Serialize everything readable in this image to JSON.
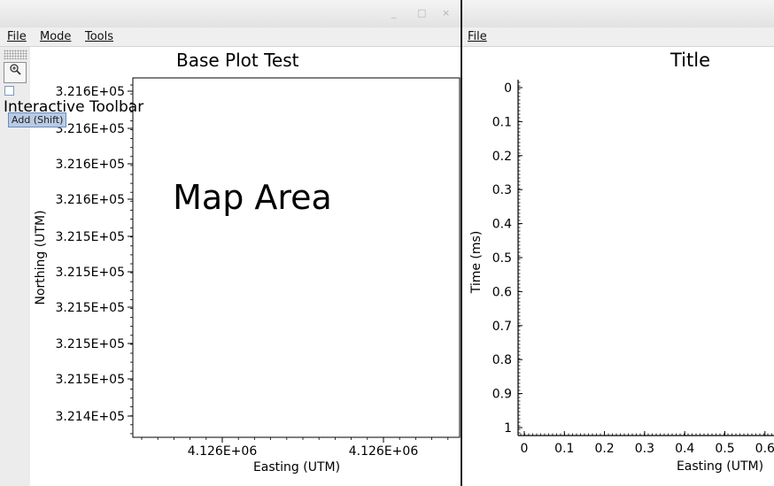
{
  "left_window": {
    "controls": {
      "minimize": "_",
      "maximize": "□",
      "close": "×"
    },
    "menu": [
      "File",
      "Mode",
      "Tools"
    ],
    "toolbar": {
      "zoom_icon": "zoom-in-icon",
      "title": "Interactive Toolbar",
      "tooltip": "Add (Shift)"
    },
    "plot": {
      "title": "Base Plot Test",
      "map_label": "Map Area",
      "xlabel": "Easting (UTM)",
      "ylabel": "Northing (UTM)",
      "x_ticks": [
        "4.126E+06",
        "4.126E+06"
      ],
      "y_ticks": [
        "3.216E+05",
        "3.216E+05",
        "3.216E+05",
        "3.216E+05",
        "3.215E+05",
        "3.215E+05",
        "3.215E+05",
        "3.215E+05",
        "3.215E+05",
        "3.214E+05"
      ]
    }
  },
  "right_window": {
    "menu": [
      "File"
    ],
    "plot": {
      "title": "Title",
      "xlabel": "Easting (UTM)",
      "ylabel": "Time (ms)",
      "x_ticks": [
        "0",
        "0.1",
        "0.2",
        "0.3",
        "0.4",
        "0.5",
        "0.6"
      ],
      "y_ticks": [
        "0",
        "0.1",
        "0.2",
        "0.3",
        "0.4",
        "0.5",
        "0.6",
        "0.7",
        "0.8",
        "0.9",
        "1"
      ]
    }
  }
}
